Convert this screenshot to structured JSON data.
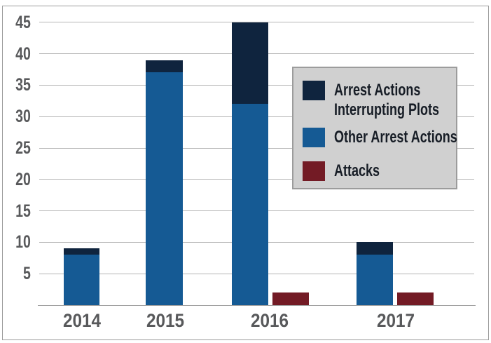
{
  "chart_data": {
    "type": "bar",
    "subtype": "stacked-column-with-adjacent-column",
    "title": "",
    "xlabel": "",
    "ylabel": "",
    "categories": [
      "2014",
      "2015",
      "2016",
      "2017"
    ],
    "series": [
      {
        "name": "Arrest Actions Interrupting Plots",
        "role": "stack-top-segment",
        "color": "#0f243e",
        "values": [
          1,
          2,
          13,
          2
        ]
      },
      {
        "name": "Other Arrest Actions",
        "role": "stack-bottom-segment",
        "color": "#155a94",
        "values": [
          8,
          37,
          32,
          8
        ]
      },
      {
        "name": "Attacks",
        "role": "separate-column",
        "color": "#731b25",
        "values": [
          0,
          0,
          2,
          2
        ]
      }
    ],
    "stack_totals": [
      9,
      39,
      45,
      10
    ],
    "ylim": [
      0,
      45
    ],
    "yticks": [
      5,
      10,
      15,
      20,
      25,
      30,
      35,
      40,
      45
    ],
    "grid": true,
    "legend_position": "upper-right-inside"
  },
  "legend": {
    "items": [
      {
        "lines": [
          "Arrest Actions",
          "Interrupting Plots"
        ],
        "color": "#0f243e"
      },
      {
        "lines": [
          "Other Arrest Actions"
        ],
        "color": "#155a94"
      },
      {
        "lines": [
          "Attacks"
        ],
        "color": "#731b25"
      }
    ]
  },
  "colors": {
    "navy": "#0f243e",
    "blue": "#155a94",
    "maroon": "#731b25",
    "gridline": "#b5b5b5",
    "axis_line": "#9e9e9e",
    "tick_label": "#58595b",
    "legend_background": "#d0d0d0",
    "legend_border": "#9c9c9c",
    "legend_text": "#171d26",
    "frame_border": "#9c9c9c",
    "background": "#ffffff"
  }
}
